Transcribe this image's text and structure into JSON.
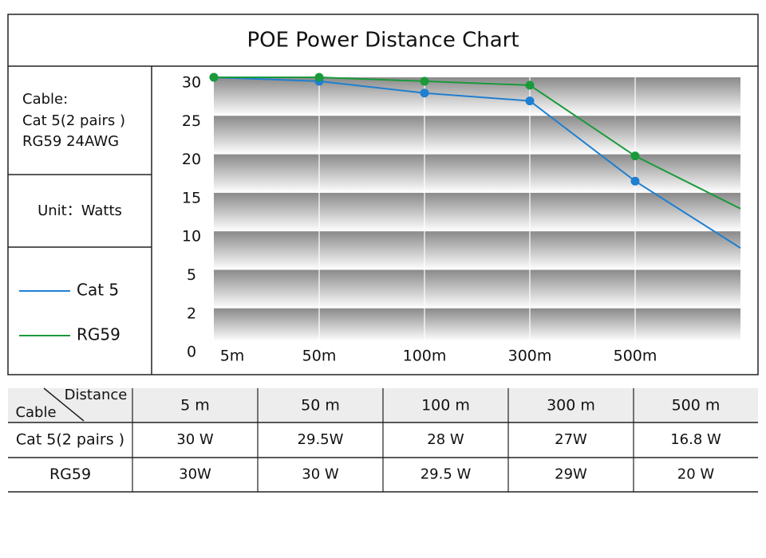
{
  "title": "POE  Power Distance Chart",
  "sidebar": {
    "cable_lines": [
      "Cable:",
      "Cat 5(2 pairs )",
      "RG59  24AWG"
    ],
    "unit": "Unit：Watts"
  },
  "chart_data": {
    "type": "line",
    "categories": [
      "5m",
      "50m",
      "100m",
      "300m",
      "500m",
      null
    ],
    "series": [
      {
        "name": "Cat 5",
        "color": "#1f7fd0",
        "values": [
          30,
          29.5,
          28,
          27,
          16.8,
          8.3
        ]
      },
      {
        "name": "RG59",
        "color": "#1a9a3a",
        "values": [
          30,
          30,
          29.5,
          29,
          20,
          13.3
        ]
      }
    ],
    "ylim": [
      0,
      30
    ],
    "yticks": [
      30,
      25,
      20,
      15,
      10,
      5,
      2,
      0
    ]
  },
  "table": {
    "corner": [
      "Distance",
      "Cable"
    ],
    "columns": [
      "5 m",
      "50 m",
      "100 m",
      "300 m",
      "500 m"
    ],
    "rows": [
      [
        "Cat 5(2 pairs )",
        "30 W",
        "29.5W",
        "28 W",
        "27W",
        "16.8 W"
      ],
      [
        "RG59",
        "30W",
        "30 W",
        "29.5 W",
        "29W",
        "20 W"
      ]
    ]
  }
}
